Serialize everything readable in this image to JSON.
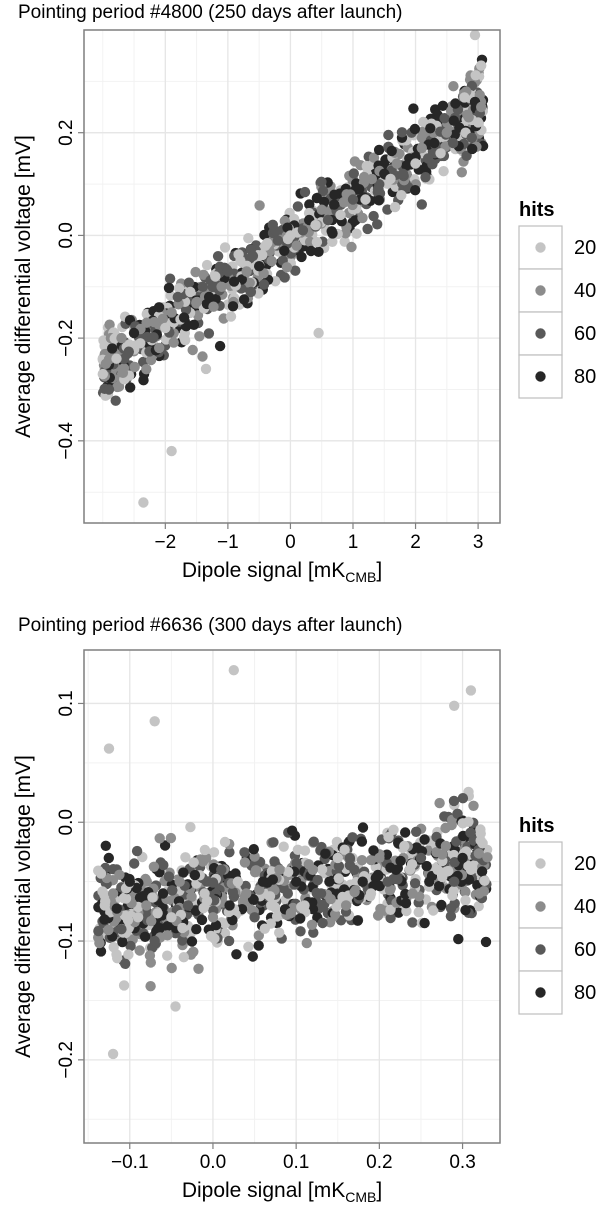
{
  "chart_data": [
    {
      "type": "scatter",
      "title": "Pointing period #4800 (250 days after launch)",
      "xlabel": "Dipole signal [mK",
      "xlabel_sub": "CMB",
      "xlabel_end": "]",
      "ylabel": "Average differential voltage [mV]",
      "xlim": [
        -3.3,
        3.35
      ],
      "ylim": [
        -0.56,
        0.4
      ],
      "x_ticks": [
        -2,
        -1,
        0,
        1,
        2,
        3
      ],
      "x_tick_labels": [
        "−2",
        "−1",
        "0",
        "1",
        "2",
        "3"
      ],
      "y_ticks": [
        0.2,
        0.0,
        -0.2,
        -0.4
      ],
      "y_tick_labels": [
        "0.2",
        "0.0",
        "−0.2",
        "−0.4"
      ],
      "grid": true,
      "legend": {
        "title": "hits",
        "placement": "right",
        "entries": [
          "20",
          "40",
          "60",
          "80"
        ],
        "colors": [
          "#c4c4c4",
          "#8c8c8c",
          "#595959",
          "#262626"
        ]
      },
      "trend": {
        "slope": 0.083,
        "intercept": -0.01,
        "noise_sd": 0.035
      },
      "x": [
        -3.0,
        -2.95,
        -2.9,
        -2.85,
        -2.78,
        -2.7,
        -2.6,
        -2.5,
        -2.4,
        -2.3,
        -2.2,
        -2.1,
        -2.0,
        -1.9,
        -1.8,
        -1.7,
        -1.6,
        -1.5,
        -1.4,
        -1.3,
        -1.2,
        -1.1,
        -1.0,
        -0.9,
        -0.8,
        -0.7,
        -0.6,
        -0.5,
        -0.4,
        -0.3,
        -0.2,
        -0.1,
        0.0,
        0.1,
        0.2,
        0.3,
        0.4,
        0.5,
        0.6,
        0.7,
        0.8,
        0.9,
        1.0,
        1.1,
        1.2,
        1.3,
        1.4,
        1.5,
        1.6,
        1.7,
        1.8,
        1.9,
        2.0,
        2.1,
        2.2,
        2.3,
        2.4,
        2.5,
        2.6,
        2.7,
        2.8,
        2.85,
        2.9,
        2.95,
        3.0,
        3.05,
        -2.35,
        -1.9,
        -1.35,
        2.95,
        0.45
      ],
      "y": [
        -0.27,
        -0.25,
        -0.3,
        -0.22,
        -0.24,
        -0.2,
        -0.23,
        -0.19,
        -0.21,
        -0.17,
        -0.2,
        -0.14,
        -0.18,
        -0.15,
        -0.12,
        -0.16,
        -0.11,
        -0.13,
        -0.1,
        -0.12,
        -0.08,
        -0.1,
        -0.07,
        -0.09,
        -0.05,
        -0.07,
        -0.04,
        -0.06,
        -0.02,
        -0.05,
        -0.01,
        -0.03,
        0.0,
        -0.02,
        0.01,
        0.03,
        0.02,
        0.05,
        0.03,
        0.06,
        0.04,
        0.08,
        0.07,
        0.09,
        0.07,
        0.11,
        0.09,
        0.12,
        0.11,
        0.14,
        0.12,
        0.15,
        0.14,
        0.17,
        0.15,
        0.18,
        0.16,
        0.2,
        0.18,
        0.21,
        0.2,
        0.23,
        0.19,
        0.26,
        0.22,
        0.25,
        -0.52,
        -0.42,
        -0.26,
        0.39,
        -0.19
      ],
      "hits": [
        20,
        40,
        60,
        80,
        20,
        40,
        60,
        80,
        20,
        40,
        60,
        80,
        20,
        40,
        60,
        80,
        20,
        40,
        60,
        80,
        20,
        40,
        60,
        80,
        20,
        40,
        60,
        80,
        20,
        40,
        60,
        80,
        20,
        40,
        60,
        80,
        20,
        40,
        60,
        80,
        20,
        40,
        60,
        80,
        20,
        40,
        60,
        80,
        20,
        40,
        60,
        80,
        20,
        40,
        60,
        80,
        20,
        40,
        60,
        80,
        20,
        40,
        60,
        80,
        20,
        40,
        20,
        20,
        20,
        20,
        20
      ]
    },
    {
      "type": "scatter",
      "title": "Pointing period #6636 (300 days after launch)",
      "xlabel": "Dipole signal [mK",
      "xlabel_sub": "CMB",
      "xlabel_end": "]",
      "ylabel": "Average differential voltage [mV]",
      "xlim": [
        -0.155,
        0.345
      ],
      "ylim": [
        -0.27,
        0.145
      ],
      "x_ticks": [
        -0.1,
        0.0,
        0.1,
        0.2,
        0.3
      ],
      "x_tick_labels": [
        "−0.1",
        "0.0",
        "0.1",
        "0.2",
        "0.3"
      ],
      "y_ticks": [
        0.1,
        0.0,
        -0.1,
        -0.2
      ],
      "y_tick_labels": [
        "0.1",
        "0.0",
        "−0.1",
        "−0.2"
      ],
      "grid": true,
      "legend": {
        "title": "hits",
        "placement": "right",
        "entries": [
          "20",
          "40",
          "60",
          "80"
        ],
        "colors": [
          "#c4c4c4",
          "#8c8c8c",
          "#595959",
          "#262626"
        ]
      },
      "trend": {
        "slope": 0.1,
        "intercept": -0.065,
        "noise_sd": 0.02
      },
      "x": [
        -0.13,
        -0.12,
        -0.11,
        -0.1,
        -0.09,
        -0.08,
        -0.07,
        -0.06,
        -0.05,
        -0.04,
        -0.03,
        -0.02,
        -0.01,
        0.0,
        0.01,
        0.02,
        0.03,
        0.04,
        0.05,
        0.06,
        0.07,
        0.08,
        0.09,
        0.1,
        0.11,
        0.12,
        0.13,
        0.14,
        0.15,
        0.16,
        0.17,
        0.18,
        0.19,
        0.2,
        0.21,
        0.22,
        0.23,
        0.24,
        0.25,
        0.26,
        0.27,
        0.28,
        0.29,
        0.3,
        0.31,
        0.32,
        -0.125,
        -0.07,
        0.025,
        0.29,
        0.31,
        -0.075,
        -0.12,
        -0.045
      ],
      "y": [
        -0.07,
        -0.06,
        -0.09,
        -0.05,
        -0.08,
        -0.07,
        -0.1,
        -0.06,
        -0.08,
        -0.05,
        -0.07,
        -0.09,
        -0.06,
        -0.08,
        -0.04,
        -0.07,
        -0.05,
        -0.06,
        -0.08,
        -0.05,
        -0.07,
        -0.04,
        -0.06,
        -0.05,
        -0.07,
        -0.04,
        -0.06,
        -0.05,
        -0.03,
        -0.07,
        -0.04,
        -0.05,
        -0.06,
        -0.03,
        -0.05,
        -0.04,
        -0.02,
        -0.06,
        -0.03,
        -0.05,
        -0.04,
        -0.02,
        -0.05,
        -0.03,
        -0.04,
        -0.06,
        0.062,
        0.085,
        0.128,
        0.098,
        0.111,
        -0.138,
        -0.195,
        -0.155
      ],
      "hits": [
        20,
        40,
        60,
        80,
        20,
        40,
        60,
        80,
        20,
        40,
        60,
        80,
        20,
        40,
        60,
        80,
        20,
        40,
        60,
        80,
        20,
        40,
        60,
        80,
        20,
        40,
        60,
        80,
        20,
        40,
        60,
        80,
        20,
        40,
        60,
        80,
        20,
        40,
        60,
        80,
        20,
        40,
        60,
        80,
        20,
        40,
        20,
        20,
        20,
        20,
        20,
        40,
        20,
        20
      ]
    }
  ]
}
